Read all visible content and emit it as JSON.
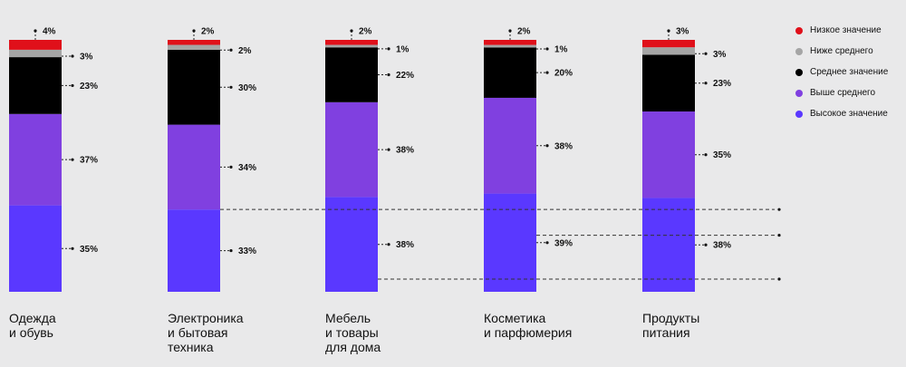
{
  "chart_data": {
    "type": "bar",
    "stacked": true,
    "normalized": "100%",
    "categories": [
      "Одежда\nи обувь",
      "Электроника\nи бытовая\nтехника",
      "Мебель\nи товары\nдля дома",
      "Косметика\nи парфюмерия",
      "Продукты\nпитания"
    ],
    "series": [
      {
        "name": "Низкое значение",
        "color": "#e0101a",
        "values": [
          4,
          2,
          2,
          2,
          3
        ]
      },
      {
        "name": "Ниже среднего",
        "color": "#a5a5a5",
        "values": [
          3,
          2,
          1,
          1,
          3
        ]
      },
      {
        "name": "Среднее значение",
        "color": "#000000",
        "values": [
          23,
          30,
          22,
          20,
          23
        ]
      },
      {
        "name": "Выше среднего",
        "color": "#8040e0",
        "values": [
          37,
          34,
          38,
          38,
          35
        ]
      },
      {
        "name": "Высокое значение",
        "color": "#5a38ff",
        "values": [
          35,
          33,
          38,
          39,
          38
        ]
      }
    ],
    "data_labels": [
      [
        "4%",
        "3%",
        "23%",
        "37%",
        "35%"
      ],
      [
        "2%",
        "2%",
        "30%",
        "34%",
        "33%"
      ],
      [
        "2%",
        "1%",
        "22%",
        "38%",
        "38%"
      ],
      [
        "2%",
        "1%",
        "20%",
        "38%",
        "39%"
      ],
      [
        "3%",
        "3%",
        "23%",
        "35%",
        "38%"
      ]
    ],
    "legend_position": "top-right",
    "grid": false,
    "title": "",
    "xlabel": "",
    "ylabel": ""
  }
}
